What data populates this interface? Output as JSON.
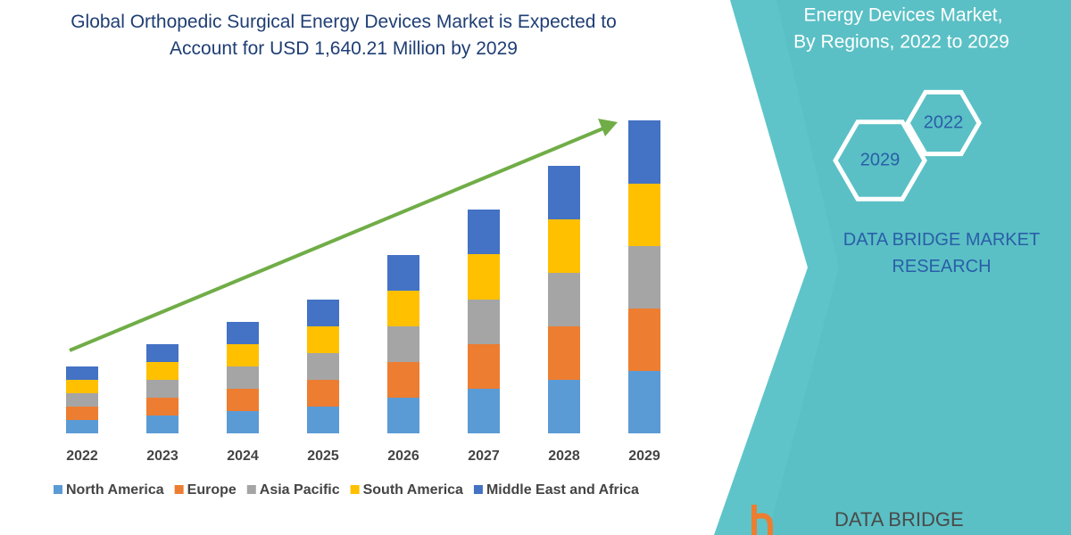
{
  "chart_data": {
    "type": "bar",
    "stacked": true,
    "title": "Global Orthopedic Surgical Energy Devices Market is Expected to Account for USD 1,640.21 Million by 2029",
    "categories": [
      "2022",
      "2023",
      "2024",
      "2025",
      "2026",
      "2027",
      "2028",
      "2029"
    ],
    "series": [
      {
        "name": "North America",
        "color": "#5b9bd5",
        "values": [
          15,
          20,
          25,
          30,
          40,
          50,
          60,
          70
        ]
      },
      {
        "name": "Europe",
        "color": "#ed7d31",
        "values": [
          15,
          20,
          25,
          30,
          40,
          50,
          60,
          70
        ]
      },
      {
        "name": "Asia Pacific",
        "color": "#a5a5a5",
        "values": [
          15,
          20,
          25,
          30,
          40,
          50,
          60,
          70
        ]
      },
      {
        "name": "South America",
        "color": "#ffc000",
        "values": [
          15,
          20,
          25,
          30,
          40,
          51,
          60,
          70
        ]
      },
      {
        "name": "Middle East and Africa",
        "color": "#4472c4",
        "values": [
          15,
          20,
          25,
          30,
          40,
          50,
          60,
          71
        ]
      }
    ],
    "ylim": [
      0,
      400
    ],
    "grid": false,
    "legend": "bottom"
  },
  "panel": {
    "subtitle_lines": [
      "Energy Devices Market,",
      "By Regions, 2022 to 2029"
    ],
    "hexagons": [
      "2022",
      "2029"
    ],
    "brand": "DATA BRIDGE MARKET RESEARCH",
    "logo": "DATA BRIDGE"
  }
}
